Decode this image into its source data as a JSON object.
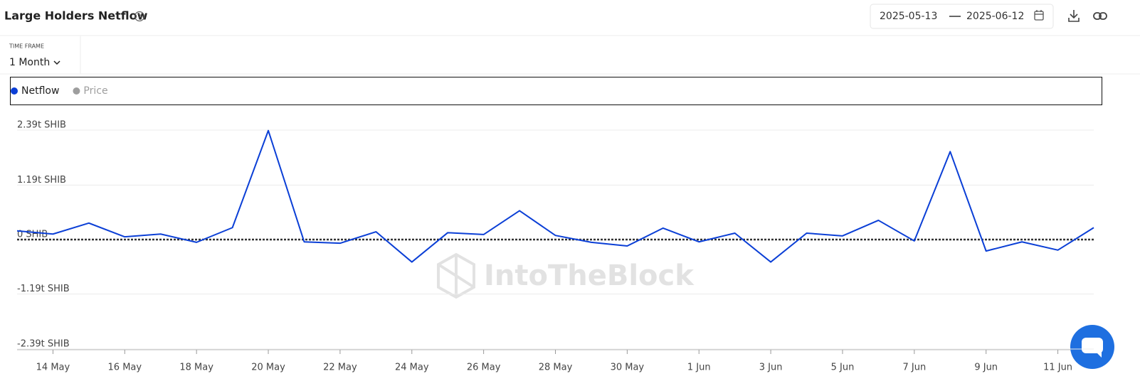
{
  "header": {
    "title": "Large Holders Netflow",
    "date_from": "2025-05-13",
    "date_to": "2025-06-12"
  },
  "controls": {
    "time_frame_label": "TIME FRAME",
    "time_frame_value": "1 Month"
  },
  "watermark": "IntoTheBlock",
  "chart_data": {
    "type": "line",
    "categories": [
      null,
      "14 May",
      null,
      "16 May",
      null,
      "18 May",
      null,
      "20 May",
      null,
      "22 May",
      null,
      "24 May",
      null,
      "26 May",
      null,
      "28 May",
      null,
      "30 May",
      null,
      "1 Jun",
      null,
      "3 Jun",
      null,
      "5 Jun",
      null,
      "7 Jun",
      null,
      "9 Jun",
      null,
      "11 Jun",
      null
    ],
    "series": [
      {
        "name": "Netflow",
        "color": "#0b3fd6",
        "values": [
          0.19,
          0.12,
          0.36,
          0.06,
          0.12,
          -0.06,
          0.26,
          2.38,
          -0.05,
          -0.08,
          0.17,
          -0.49,
          0.15,
          0.11,
          0.63,
          0.09,
          -0.06,
          -0.14,
          0.25,
          -0.05,
          0.14,
          -0.49,
          0.14,
          0.08,
          0.42,
          -0.03,
          1.92,
          -0.25,
          -0.05,
          -0.23,
          0.26
        ]
      }
    ],
    "inactive_legend": [
      {
        "name": "Price",
        "color": "#9e9e9e"
      }
    ],
    "ylim": [
      -2.39,
      2.39
    ],
    "yticks": [
      {
        "value": 2.39,
        "label": "2.39t SHIB"
      },
      {
        "value": 1.19,
        "label": "1.19t SHIB"
      },
      {
        "value": 0,
        "label": "0 SHIB"
      },
      {
        "value": -1.19,
        "label": "-1.19t SHIB"
      },
      {
        "value": -2.39,
        "label": "-2.39t SHIB"
      }
    ],
    "grid": true
  }
}
